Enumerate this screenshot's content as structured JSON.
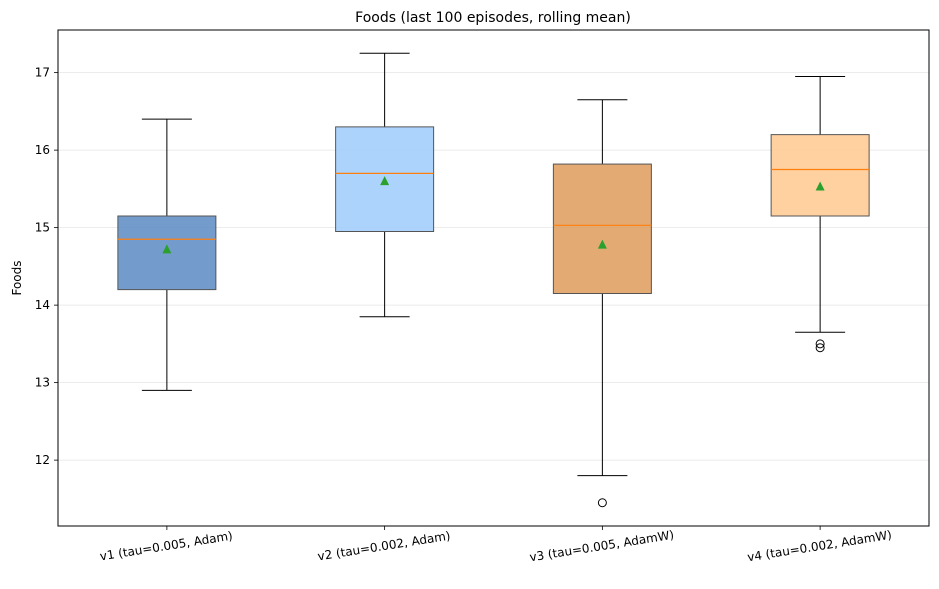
{
  "chart_data": {
    "type": "box",
    "title": "Foods (last 100 episodes, rolling mean)",
    "xlabel": "",
    "ylabel": "Foods",
    "ylim": [
      11.15,
      17.55
    ],
    "yticks": [
      12,
      13,
      14,
      15,
      16,
      17
    ],
    "grid": "horizontal",
    "categories": [
      "v1 (tau=0.005, Adam)",
      "v2 (tau=0.002, Adam)",
      "v3 (tau=0.005, AdamW)",
      "v4 (tau=0.002, AdamW)"
    ],
    "boxes": [
      {
        "whisker_low": 12.9,
        "q1": 14.2,
        "median": 14.85,
        "q3": 15.15,
        "whisker_high": 16.4,
        "mean": 14.72,
        "outliers": [],
        "color": "#5a8bc3"
      },
      {
        "whisker_low": 13.85,
        "q1": 14.95,
        "median": 15.7,
        "q3": 16.3,
        "whisker_high": 17.25,
        "mean": 15.6,
        "outliers": [],
        "color": "#9ecbfb"
      },
      {
        "whisker_low": 11.8,
        "q1": 14.15,
        "median": 15.03,
        "q3": 15.82,
        "whisker_high": 16.65,
        "mean": 14.78,
        "outliers": [
          11.45
        ],
        "color": "#de9b5c"
      },
      {
        "whisker_low": 13.65,
        "q1": 15.15,
        "median": 15.75,
        "q3": 16.2,
        "whisker_high": 16.95,
        "mean": 15.53,
        "outliers": [
          13.45,
          13.5
        ],
        "color": "#ffc98f"
      }
    ],
    "median_color": "#ff7f0e",
    "mean_color": "#2ca02c"
  }
}
